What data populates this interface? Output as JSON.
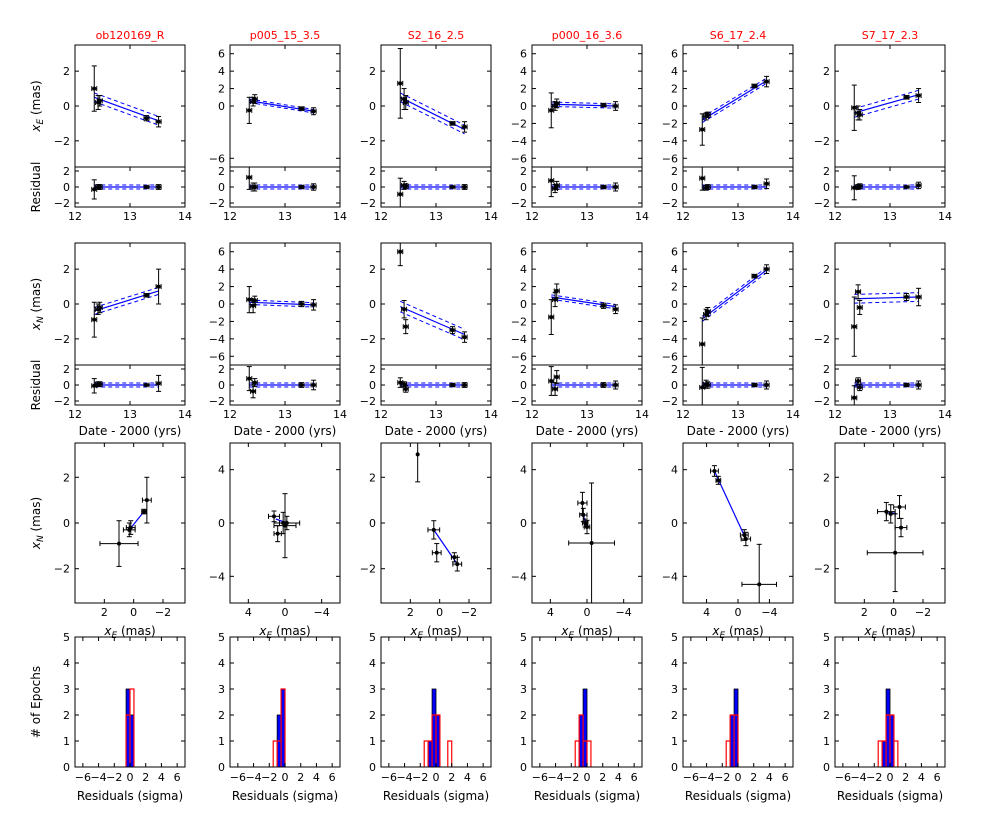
{
  "labels": {
    "xe_mas": "x",
    "xe_sub": "E",
    "xn_sub": "N",
    "mas_suffix": " (mas)",
    "residual": "Residual",
    "date": "Date - 2000 (yrs)",
    "epochs": "# of Epochs",
    "residuals_sigma": "Residuals (sigma)"
  },
  "colors": {
    "title": "#ff0000",
    "model": "#0000ff",
    "hist_fill": "#0000ff",
    "hist_outline": "#ff0000",
    "data": "#000000"
  },
  "chart_data": [
    {
      "title": "ob120169_R",
      "type": "scatter",
      "dates": [
        12.35,
        12.42,
        12.45,
        13.3,
        13.52
      ],
      "xe": {
        "ylim": [
          -3.5,
          3.5
        ],
        "yticks": [
          -2,
          0,
          2
        ],
        "values": [
          1.0,
          0.2,
          0.3,
          -0.7,
          -0.9
        ],
        "errors": [
          1.3,
          0.4,
          0.3,
          0.15,
          0.3
        ],
        "model": [
          [
            12.35,
            0.5
          ],
          [
            13.52,
            -0.85
          ]
        ],
        "band": 0.25
      },
      "xe_res": {
        "values": [
          -0.3,
          0.0,
          0.0,
          0.0,
          0.0
        ],
        "errors": [
          1.2,
          0.3,
          0.3,
          0.15,
          0.3
        ]
      },
      "xn": {
        "ylim": [
          -3.5,
          3.5
        ],
        "yticks": [
          -2,
          0,
          2
        ],
        "values": [
          -0.9,
          -0.3,
          -0.2,
          0.5,
          1.0
        ],
        "errors": [
          1.0,
          0.3,
          0.3,
          0.1,
          1.0
        ],
        "model": [
          [
            12.35,
            -0.4
          ],
          [
            13.52,
            0.75
          ]
        ],
        "band": 0.2
      },
      "xn_res": {
        "values": [
          -0.1,
          0.1,
          0.1,
          0.0,
          0.2
        ],
        "errors": [
          0.9,
          0.3,
          0.3,
          0.1,
          1.0
        ]
      },
      "sky": {
        "xlim": [
          4,
          -3.5
        ],
        "xticks": [
          2,
          0,
          -2
        ],
        "ylim": [
          -3.5,
          3.5
        ],
        "yticks": [
          -2,
          0,
          2
        ],
        "points": [
          [
            1.0,
            -0.9,
            1.3,
            1.0
          ],
          [
            0.3,
            -0.3,
            0.4,
            0.3
          ],
          [
            0.2,
            -0.2,
            0.3,
            0.3
          ],
          [
            -0.7,
            0.5,
            0.15,
            0.1
          ],
          [
            -0.9,
            1.0,
            0.3,
            1.0
          ]
        ],
        "line": [
          [
            0.3,
            -0.3
          ],
          [
            -0.7,
            0.5
          ]
        ]
      },
      "hist": {
        "blue": [
          [
            -0.5,
            0,
            3
          ],
          [
            0,
            0.5,
            2
          ]
        ],
        "red": [
          [
            -0.5,
            0,
            2
          ],
          [
            0,
            0.5,
            3
          ]
        ]
      }
    },
    {
      "title": "p005_15_3.5",
      "type": "scatter",
      "dates": [
        12.35,
        12.42,
        12.45,
        13.3,
        13.52
      ],
      "xe": {
        "ylim": [
          -7,
          7
        ],
        "yticks": [
          -6,
          0,
          2,
          4,
          6
        ],
        "values": [
          -0.5,
          0.5,
          0.8,
          -0.3,
          -0.6
        ],
        "errors": [
          1.5,
          0.5,
          0.5,
          0.2,
          0.4
        ],
        "model": [
          [
            12.35,
            0.6
          ],
          [
            13.52,
            -0.6
          ]
        ],
        "band": 0.2
      },
      "xe_res": {
        "values": [
          1.2,
          0.0,
          0.0,
          0.0,
          0.0
        ],
        "errors": [
          1.5,
          0.5,
          0.5,
          0.2,
          0.4
        ]
      },
      "xn": {
        "ylim": [
          -7,
          7
        ],
        "yticks": [
          -6,
          -4,
          -2,
          0,
          2,
          4,
          6
        ],
        "values": [
          0.5,
          -0.2,
          0.4,
          0.0,
          -0.1
        ],
        "errors": [
          1.5,
          0.8,
          0.5,
          0.3,
          0.6
        ],
        "model": [
          [
            12.35,
            0.2
          ],
          [
            13.52,
            -0.1
          ]
        ],
        "band": 0.25
      },
      "xn_res": {
        "values": [
          0.8,
          -0.8,
          0.3,
          0.0,
          0.0
        ],
        "errors": [
          1.5,
          0.8,
          0.5,
          0.3,
          0.6
        ]
      },
      "sky": {
        "xlim": [
          6,
          -6
        ],
        "xticks": [
          4,
          0,
          -4
        ],
        "ylim": [
          -6,
          6
        ],
        "yticks": [
          -4,
          0,
          4
        ],
        "points": [
          [
            1.2,
            0.5,
            0.6,
            0.4
          ],
          [
            0.8,
            -0.8,
            0.4,
            0.6
          ],
          [
            0.0,
            -0.2,
            1.2,
            2.4
          ],
          [
            -0.2,
            0.0,
            1.4,
            0.5
          ],
          [
            0.2,
            0.0,
            0.4,
            0.8
          ]
        ],
        "line": [
          [
            1.0,
            0.3
          ],
          [
            -0.2,
            0.0
          ]
        ]
      },
      "hist": {
        "blue": [
          [
            -1,
            -0.5,
            2
          ],
          [
            -0.5,
            0,
            3
          ]
        ],
        "red": [
          [
            -1.5,
            -1,
            1
          ],
          [
            -1,
            -0.5,
            1
          ],
          [
            -0.5,
            0,
            3
          ]
        ]
      }
    },
    {
      "title": "S2_16_2.5",
      "type": "scatter",
      "dates": [
        12.35,
        12.42,
        12.45,
        13.3,
        13.52
      ],
      "xe": {
        "ylim": [
          -3.5,
          3.5
        ],
        "yticks": [
          -2,
          0,
          2
        ],
        "values": [
          1.3,
          0.4,
          0.2,
          -1.0,
          -1.2
        ],
        "errors": [
          2.0,
          0.6,
          0.4,
          0.1,
          0.3
        ],
        "model": [
          [
            12.35,
            0.5
          ],
          [
            13.52,
            -1.35
          ]
        ],
        "band": 0.25
      },
      "xe_res": {
        "values": [
          -0.9,
          0.2,
          0.1,
          0.0,
          0.0
        ],
        "errors": [
          2.0,
          0.5,
          0.3,
          0.1,
          0.3
        ]
      },
      "xn": {
        "ylim": [
          -3.5,
          3.5
        ],
        "yticks": [
          -2,
          0,
          2
        ],
        "values": [
          3.0,
          -0.3,
          -1.3,
          -1.5,
          -1.9
        ],
        "errors": [
          0.8,
          0.5,
          0.4,
          0.2,
          0.3
        ],
        "model": [
          [
            12.35,
            -0.15
          ],
          [
            13.52,
            -1.75
          ]
        ],
        "band": 0.3
      },
      "xn_res": {
        "values": [
          0.3,
          0.1,
          -0.5,
          0.0,
          0.0
        ],
        "errors": [
          0.6,
          0.3,
          0.4,
          0.2,
          0.3
        ]
      },
      "sky": {
        "xlim": [
          4,
          -3.5
        ],
        "xticks": [
          2,
          0,
          -2
        ],
        "ylim": [
          -3.5,
          3.5
        ],
        "yticks": [
          -2,
          0,
          2
        ],
        "points": [
          [
            0.4,
            -0.3,
            0.4,
            0.4
          ],
          [
            0.2,
            -1.3,
            0.3,
            0.4
          ],
          [
            -1.0,
            -1.5,
            0.2,
            0.2
          ],
          [
            -1.2,
            -1.8,
            0.3,
            0.3
          ],
          [
            1.5,
            3.0,
            0.0,
            1.2
          ]
        ],
        "line": [
          [
            0.4,
            -0.3
          ],
          [
            -1.2,
            -1.8
          ]
        ]
      },
      "hist": {
        "blue": [
          [
            -1,
            -0.5,
            1
          ],
          [
            -0.5,
            0,
            3
          ],
          [
            0,
            0.5,
            2
          ]
        ],
        "red": [
          [
            -1.5,
            -1,
            1
          ],
          [
            -1,
            -0.5,
            1
          ],
          [
            -0.5,
            0,
            2
          ],
          [
            0,
            0.5,
            2
          ],
          [
            1.5,
            2,
            1
          ]
        ]
      }
    },
    {
      "title": "p000_16_3.6",
      "type": "scatter",
      "dates": [
        12.35,
        12.42,
        12.45,
        13.3,
        13.52
      ],
      "xe": {
        "ylim": [
          -7,
          7
        ],
        "yticks": [
          -6,
          -4,
          -2,
          0,
          2,
          4,
          6
        ],
        "values": [
          -0.5,
          0.0,
          0.3,
          0.1,
          0.0
        ],
        "errors": [
          2.0,
          0.5,
          0.5,
          0.2,
          0.5
        ],
        "model": [
          [
            12.35,
            0.2
          ],
          [
            13.52,
            0.0
          ]
        ],
        "band": 0.25
      },
      "xe_res": {
        "values": [
          0.8,
          -0.2,
          0.2,
          0.0,
          0.0
        ],
        "errors": [
          2.0,
          0.5,
          0.5,
          0.2,
          0.5
        ]
      },
      "xn": {
        "ylim": [
          -7,
          7
        ],
        "yticks": [
          -6,
          -4,
          -2,
          0,
          2,
          4,
          6
        ],
        "values": [
          -1.5,
          0.5,
          1.5,
          -0.2,
          -0.6
        ],
        "errors": [
          2.0,
          0.8,
          0.8,
          0.3,
          0.5
        ],
        "model": [
          [
            12.35,
            0.8
          ],
          [
            13.52,
            -0.3
          ]
        ],
        "band": 0.25
      },
      "xn_res": {
        "values": [
          0.5,
          -0.5,
          1.0,
          0.0,
          0.0
        ],
        "errors": [
          1.8,
          0.8,
          0.8,
          0.3,
          0.5
        ]
      },
      "sky": {
        "xlim": [
          6,
          -6
        ],
        "xticks": [
          4,
          0,
          -4
        ],
        "ylim": [
          -6,
          6
        ],
        "yticks": [
          -4,
          0,
          4
        ],
        "points": [
          [
            0.5,
            1.5,
            0.5,
            0.8
          ],
          [
            0.4,
            0.6,
            0.4,
            0.5
          ],
          [
            0.2,
            0.0,
            0.3,
            0.3
          ],
          [
            0.0,
            -0.3,
            0.3,
            0.5
          ],
          [
            -0.5,
            -1.5,
            2.5,
            4.5
          ]
        ],
        "line": [
          [
            0.4,
            0.6
          ],
          [
            0.1,
            -0.2
          ]
        ]
      },
      "hist": {
        "blue": [
          [
            -1,
            -0.5,
            2
          ],
          [
            -0.5,
            0,
            3
          ]
        ],
        "red": [
          [
            -1.5,
            -1,
            1
          ],
          [
            -1,
            -0.5,
            2
          ],
          [
            -0.5,
            0,
            1
          ],
          [
            0,
            0.5,
            1
          ]
        ]
      }
    },
    {
      "title": "S6_17_2.4",
      "type": "scatter",
      "dates": [
        12.35,
        12.42,
        12.45,
        13.3,
        13.52
      ],
      "xe": {
        "ylim": [
          -7,
          7
        ],
        "yticks": [
          -6,
          -4,
          -2,
          0,
          2,
          4,
          6
        ],
        "values": [
          -2.7,
          -1.2,
          -1.0,
          2.3,
          2.8
        ],
        "errors": [
          1.8,
          0.4,
          0.3,
          0.2,
          0.6
        ],
        "model": [
          [
            12.35,
            -1.6
          ],
          [
            13.52,
            2.9
          ]
        ],
        "band": 0.3
      },
      "xe_res": {
        "values": [
          1.1,
          -0.1,
          0.0,
          0.0,
          0.4
        ],
        "errors": [
          1.5,
          0.3,
          0.3,
          0.2,
          0.6
        ]
      },
      "xn": {
        "ylim": [
          -7,
          7
        ],
        "yticks": [
          -6,
          -4,
          -2,
          0,
          2,
          4,
          6
        ],
        "values": [
          -4.6,
          -1.2,
          -0.9,
          3.2,
          4.0
        ],
        "errors": [
          3.0,
          0.6,
          0.5,
          0.2,
          0.5
        ],
        "model": [
          [
            12.35,
            -1.7
          ],
          [
            13.52,
            3.9
          ]
        ],
        "band": 0.3
      },
      "xn_res": {
        "values": [
          -0.3,
          0.1,
          0.0,
          0.0,
          0.0
        ],
        "errors": [
          2.5,
          0.5,
          0.4,
          0.2,
          0.5
        ]
      },
      "sky": {
        "xlim": [
          7,
          -7
        ],
        "xticks": [
          4,
          0,
          -4
        ],
        "ylim": [
          -6,
          6
        ],
        "yticks": [
          -4,
          0,
          4
        ],
        "points": [
          [
            3.0,
            3.9,
            0.5,
            0.4
          ],
          [
            2.5,
            3.2,
            0.3,
            0.3
          ],
          [
            -0.8,
            -0.9,
            0.5,
            0.4
          ],
          [
            -1.0,
            -1.2,
            0.6,
            0.5
          ],
          [
            -2.7,
            -4.6,
            2.2,
            3.0
          ]
        ],
        "line": [
          [
            3.0,
            3.9
          ],
          [
            -1.0,
            -1.2
          ]
        ]
      },
      "hist": {
        "blue": [
          [
            -1,
            -0.5,
            2
          ],
          [
            -0.5,
            0,
            3
          ]
        ],
        "red": [
          [
            -1.5,
            -1,
            1
          ],
          [
            -1,
            -0.5,
            2
          ],
          [
            -0.5,
            0,
            2
          ]
        ]
      }
    },
    {
      "title": "S7_17_2.3",
      "type": "scatter",
      "dates": [
        12.35,
        12.42,
        12.45,
        13.3,
        13.52
      ],
      "xe": {
        "ylim": [
          -3.5,
          3.5
        ],
        "yticks": [
          -2,
          0,
          2
        ],
        "values": [
          -0.1,
          -0.4,
          -0.5,
          0.5,
          0.6
        ],
        "errors": [
          1.3,
          0.4,
          0.3,
          0.1,
          0.4
        ],
        "model": [
          [
            12.35,
            -0.4
          ],
          [
            13.52,
            0.65
          ]
        ],
        "band": 0.25
      },
      "xe_res": {
        "values": [
          -0.1,
          0.0,
          0.1,
          0.0,
          0.2
        ],
        "errors": [
          1.5,
          0.3,
          0.3,
          0.1,
          0.4
        ]
      },
      "xn": {
        "ylim": [
          -3.5,
          3.5
        ],
        "yticks": [
          -2,
          0,
          2
        ],
        "values": [
          -1.3,
          0.7,
          -0.2,
          0.4,
          0.4
        ],
        "errors": [
          1.7,
          0.4,
          0.4,
          0.2,
          0.5
        ],
        "model": [
          [
            12.35,
            0.3
          ],
          [
            13.52,
            0.4
          ]
        ],
        "band": 0.25
      },
      "xn_res": {
        "values": [
          -1.6,
          0.5,
          -0.3,
          0.0,
          0.0
        ],
        "errors": [
          1.5,
          0.4,
          0.4,
          0.2,
          0.5
        ]
      },
      "sky": {
        "xlim": [
          4,
          -3.5
        ],
        "xticks": [
          2,
          0,
          -2
        ],
        "ylim": [
          -3.5,
          3.5
        ],
        "yticks": [
          -2,
          0,
          2
        ],
        "points": [
          [
            0.5,
            0.5,
            0.6,
            0.4
          ],
          [
            0.2,
            0.4,
            0.3,
            0.4
          ],
          [
            -0.4,
            0.7,
            0.4,
            0.5
          ],
          [
            -0.5,
            -0.2,
            0.4,
            0.4
          ],
          [
            -0.1,
            -1.3,
            1.9,
            1.7
          ]
        ],
        "line": [
          [
            0.5,
            0.5
          ],
          [
            -0.2,
            0.4
          ]
        ]
      },
      "hist": {
        "blue": [
          [
            -1,
            -0.5,
            1
          ],
          [
            -0.5,
            0,
            3
          ],
          [
            0,
            0.5,
            2
          ]
        ],
        "red": [
          [
            -1.5,
            -1,
            1
          ],
          [
            -1,
            -0.5,
            1
          ],
          [
            -0.5,
            0,
            2
          ],
          [
            0,
            0.5,
            2
          ],
          [
            0.5,
            1,
            1
          ]
        ]
      }
    }
  ]
}
